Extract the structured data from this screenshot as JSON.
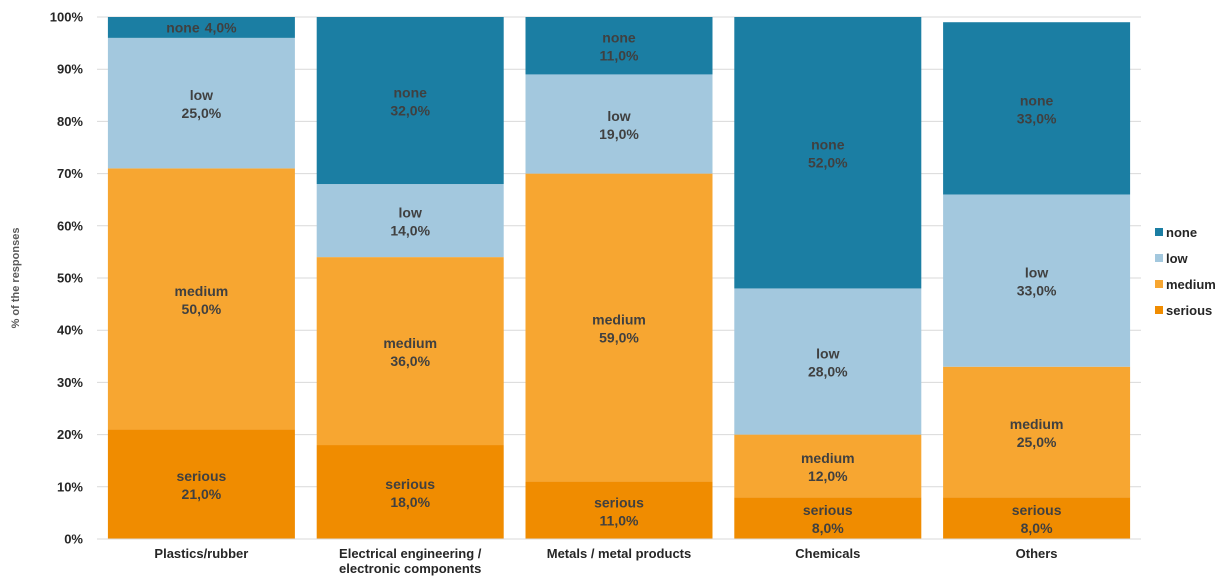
{
  "chart_data": {
    "type": "bar",
    "stacked": true,
    "categories": [
      "Plastics/rubber",
      "Electrical engineering / electronic components",
      "Metals / metal products",
      "Chemicals",
      "Others"
    ],
    "category_lines": [
      [
        "Plastics/rubber"
      ],
      [
        "Electrical engineering /",
        "electronic components"
      ],
      [
        "Metals / metal products"
      ],
      [
        "Chemicals"
      ],
      [
        "Others"
      ]
    ],
    "series": [
      {
        "name": "serious",
        "values": [
          21,
          18,
          11,
          8,
          8
        ],
        "labels": [
          "21,0%",
          "18,0%",
          "11,0%",
          "8,0%",
          "8,0%"
        ],
        "color": "#f08c00"
      },
      {
        "name": "medium",
        "values": [
          50,
          36,
          59,
          12,
          25
        ],
        "labels": [
          "50,0%",
          "36,0%",
          "59,0%",
          "12,0%",
          "25,0%"
        ],
        "color": "#f7a631"
      },
      {
        "name": "low",
        "values": [
          25,
          14,
          19,
          28,
          33
        ],
        "labels": [
          "25,0%",
          "14,0%",
          "19,0%",
          "28,0%",
          "33,0%"
        ],
        "color": "#a3c8de"
      },
      {
        "name": "none",
        "values": [
          4,
          32,
          11,
          52,
          33
        ],
        "labels": [
          "4,0%",
          "32,0%",
          "11,0%",
          "52,0%",
          "33,0%"
        ],
        "color": "#1b7ea3"
      }
    ],
    "ylabel": "% of the responses",
    "xlabel": "",
    "ylim": [
      0,
      100
    ],
    "yticks": [
      "0%",
      "10%",
      "20%",
      "30%",
      "40%",
      "50%",
      "60%",
      "70%",
      "80%",
      "90%",
      "100%"
    ],
    "grid": true,
    "legend": {
      "position": "right",
      "order": [
        "none",
        "low",
        "medium",
        "serious"
      ]
    }
  }
}
